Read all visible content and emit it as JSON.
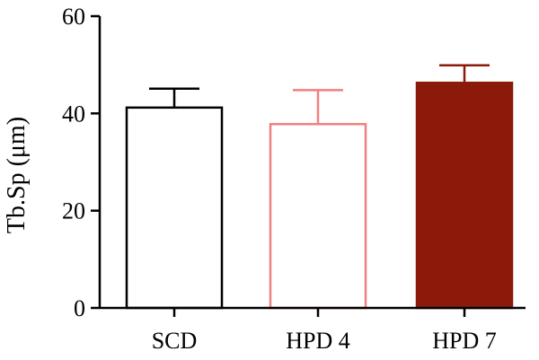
{
  "chart_data": {
    "type": "bar",
    "title": "",
    "xlabel": "",
    "ylabel": "Tb.Sp (μm)",
    "ylim": [
      0,
      60
    ],
    "yticks": [
      0,
      20,
      40,
      60
    ],
    "grid": false,
    "legend": "none",
    "categories": [
      "SCD",
      "HPD 4",
      "HPD 7"
    ],
    "series": [
      {
        "values": [
          41.2,
          37.8,
          46.3
        ],
        "error": [
          3.9,
          7.0,
          3.6
        ]
      }
    ],
    "bar_styles": [
      {
        "fill": "#ffffff",
        "stroke": "#000000",
        "error_color": "#000000"
      },
      {
        "fill": "#ffffff",
        "stroke": "#f08080",
        "error_color": "#f08080"
      },
      {
        "fill": "#8b1a0a",
        "stroke": "#8b1a0a",
        "error_color": "#8b1a0a"
      }
    ]
  }
}
